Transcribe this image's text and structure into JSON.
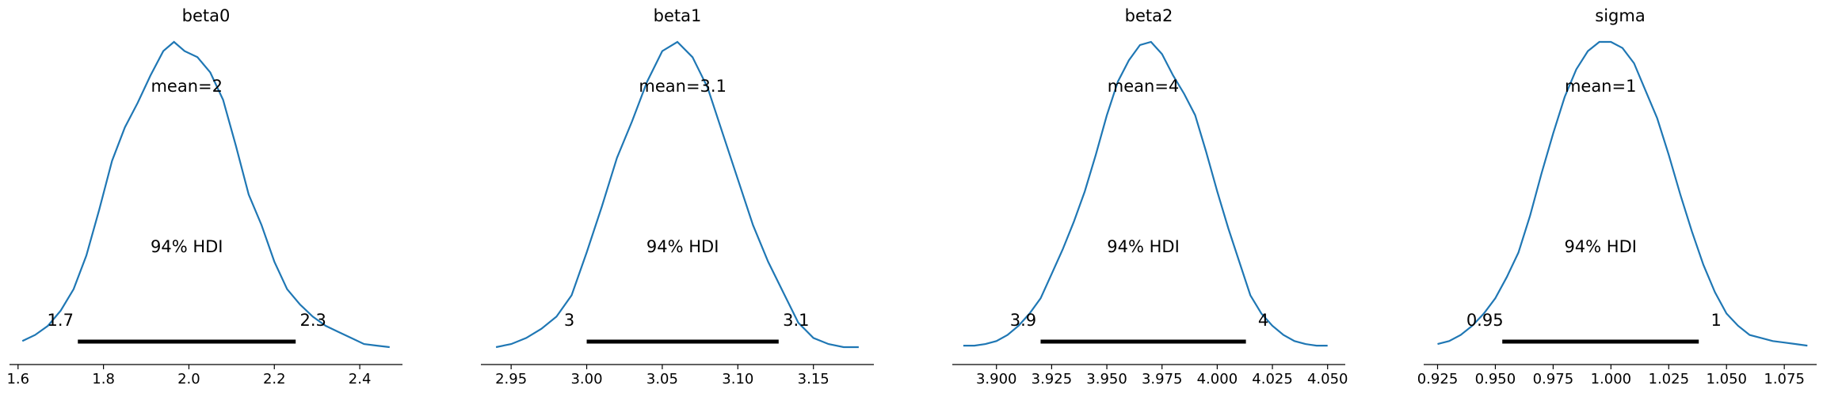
{
  "chart_data": [
    {
      "type": "line",
      "title": "beta0",
      "mean_label": "mean=2",
      "hdi_label": "94% HDI",
      "hdi": {
        "low": 1.74,
        "high": 2.25,
        "low_label": "1.7",
        "high_label": "2.3"
      },
      "xlim": [
        1.58,
        2.5
      ],
      "xticks": [
        1.6,
        1.8,
        2.0,
        2.2,
        2.4
      ],
      "xtick_labels": [
        "1.6",
        "1.8",
        "2.0",
        "2.2",
        "2.4"
      ],
      "density": {
        "x": [
          1.61,
          1.64,
          1.67,
          1.7,
          1.73,
          1.76,
          1.79,
          1.82,
          1.85,
          1.88,
          1.91,
          1.94,
          1.965,
          1.99,
          2.02,
          2.05,
          2.08,
          2.11,
          2.14,
          2.17,
          2.2,
          2.23,
          2.26,
          2.29,
          2.32,
          2.35,
          2.38,
          2.41,
          2.44,
          2.47
        ],
        "y": [
          0.02,
          0.04,
          0.07,
          0.12,
          0.19,
          0.3,
          0.45,
          0.61,
          0.72,
          0.8,
          0.89,
          0.97,
          1.0,
          0.97,
          0.95,
          0.9,
          0.81,
          0.66,
          0.5,
          0.4,
          0.28,
          0.19,
          0.14,
          0.1,
          0.07,
          0.05,
          0.03,
          0.01,
          0.005,
          0.0
        ]
      }
    },
    {
      "type": "line",
      "title": "beta1",
      "mean_label": "mean=3.1",
      "hdi_label": "94% HDI",
      "hdi": {
        "low": 3.0,
        "high": 3.127,
        "low_label": "3",
        "high_label": "3.1"
      },
      "xlim": [
        2.93,
        3.19
      ],
      "xticks": [
        2.95,
        3.0,
        3.05,
        3.1,
        3.15
      ],
      "xtick_labels": [
        "2.95",
        "3.00",
        "3.05",
        "3.10",
        "3.15"
      ],
      "density": {
        "x": [
          2.94,
          2.95,
          2.96,
          2.97,
          2.98,
          2.99,
          3.0,
          3.01,
          3.02,
          3.03,
          3.04,
          3.05,
          3.06,
          3.07,
          3.08,
          3.09,
          3.1,
          3.11,
          3.12,
          3.13,
          3.14,
          3.15,
          3.16,
          3.17,
          3.18
        ],
        "y": [
          0.0,
          0.01,
          0.03,
          0.06,
          0.1,
          0.17,
          0.31,
          0.46,
          0.62,
          0.74,
          0.87,
          0.97,
          1.0,
          0.95,
          0.85,
          0.7,
          0.55,
          0.4,
          0.28,
          0.18,
          0.08,
          0.03,
          0.01,
          0.0,
          0.0
        ]
      }
    },
    {
      "type": "line",
      "title": "beta2",
      "mean_label": "mean=4",
      "hdi_label": "94% HDI",
      "hdi": {
        "low": 3.92,
        "high": 4.013,
        "low_label": "3.9",
        "high_label": "4"
      },
      "xlim": [
        3.88,
        4.058
      ],
      "xticks": [
        3.9,
        3.925,
        3.95,
        3.975,
        4.0,
        4.025,
        4.05
      ],
      "xtick_labels": [
        "3.900",
        "3.925",
        "3.950",
        "3.975",
        "4.000",
        "4.025",
        "4.050"
      ],
      "density": {
        "x": [
          3.885,
          3.89,
          3.895,
          3.9,
          3.905,
          3.91,
          3.915,
          3.92,
          3.925,
          3.93,
          3.935,
          3.94,
          3.945,
          3.95,
          3.955,
          3.96,
          3.965,
          3.97,
          3.975,
          3.98,
          3.985,
          3.99,
          3.995,
          4.0,
          4.005,
          4.01,
          4.015,
          4.02,
          4.025,
          4.03,
          4.035,
          4.04,
          4.045,
          4.05
        ],
        "y": [
          0.005,
          0.005,
          0.01,
          0.02,
          0.04,
          0.07,
          0.11,
          0.16,
          0.24,
          0.32,
          0.41,
          0.51,
          0.63,
          0.76,
          0.87,
          0.94,
          0.99,
          1.0,
          0.96,
          0.89,
          0.83,
          0.76,
          0.64,
          0.51,
          0.39,
          0.28,
          0.17,
          0.11,
          0.07,
          0.04,
          0.02,
          0.01,
          0.005,
          0.005
        ]
      }
    },
    {
      "type": "line",
      "title": "sigma",
      "mean_label": "mean=1",
      "hdi_label": "94% HDI",
      "hdi": {
        "low": 0.953,
        "high": 1.038,
        "low_label": "0.95",
        "high_label": "1"
      },
      "xlim": [
        0.919,
        1.089
      ],
      "xticks": [
        0.925,
        0.95,
        0.975,
        1.0,
        1.025,
        1.05,
        1.075
      ],
      "xtick_labels": [
        "0.925",
        "0.950",
        "0.975",
        "1.000",
        "1.025",
        "1.050",
        "1.075"
      ],
      "density": {
        "x": [
          0.925,
          0.93,
          0.935,
          0.94,
          0.945,
          0.95,
          0.955,
          0.96,
          0.965,
          0.97,
          0.975,
          0.98,
          0.985,
          0.99,
          0.995,
          1.0,
          1.005,
          1.01,
          1.015,
          1.02,
          1.025,
          1.03,
          1.035,
          1.04,
          1.045,
          1.05,
          1.055,
          1.06,
          1.065,
          1.07,
          1.075,
          1.08,
          1.085
        ],
        "y": [
          0.01,
          0.02,
          0.04,
          0.07,
          0.11,
          0.16,
          0.23,
          0.31,
          0.43,
          0.57,
          0.7,
          0.82,
          0.91,
          0.97,
          1.0,
          1.0,
          0.98,
          0.93,
          0.84,
          0.75,
          0.63,
          0.5,
          0.38,
          0.27,
          0.18,
          0.11,
          0.07,
          0.04,
          0.03,
          0.02,
          0.015,
          0.01,
          0.005
        ]
      }
    }
  ]
}
